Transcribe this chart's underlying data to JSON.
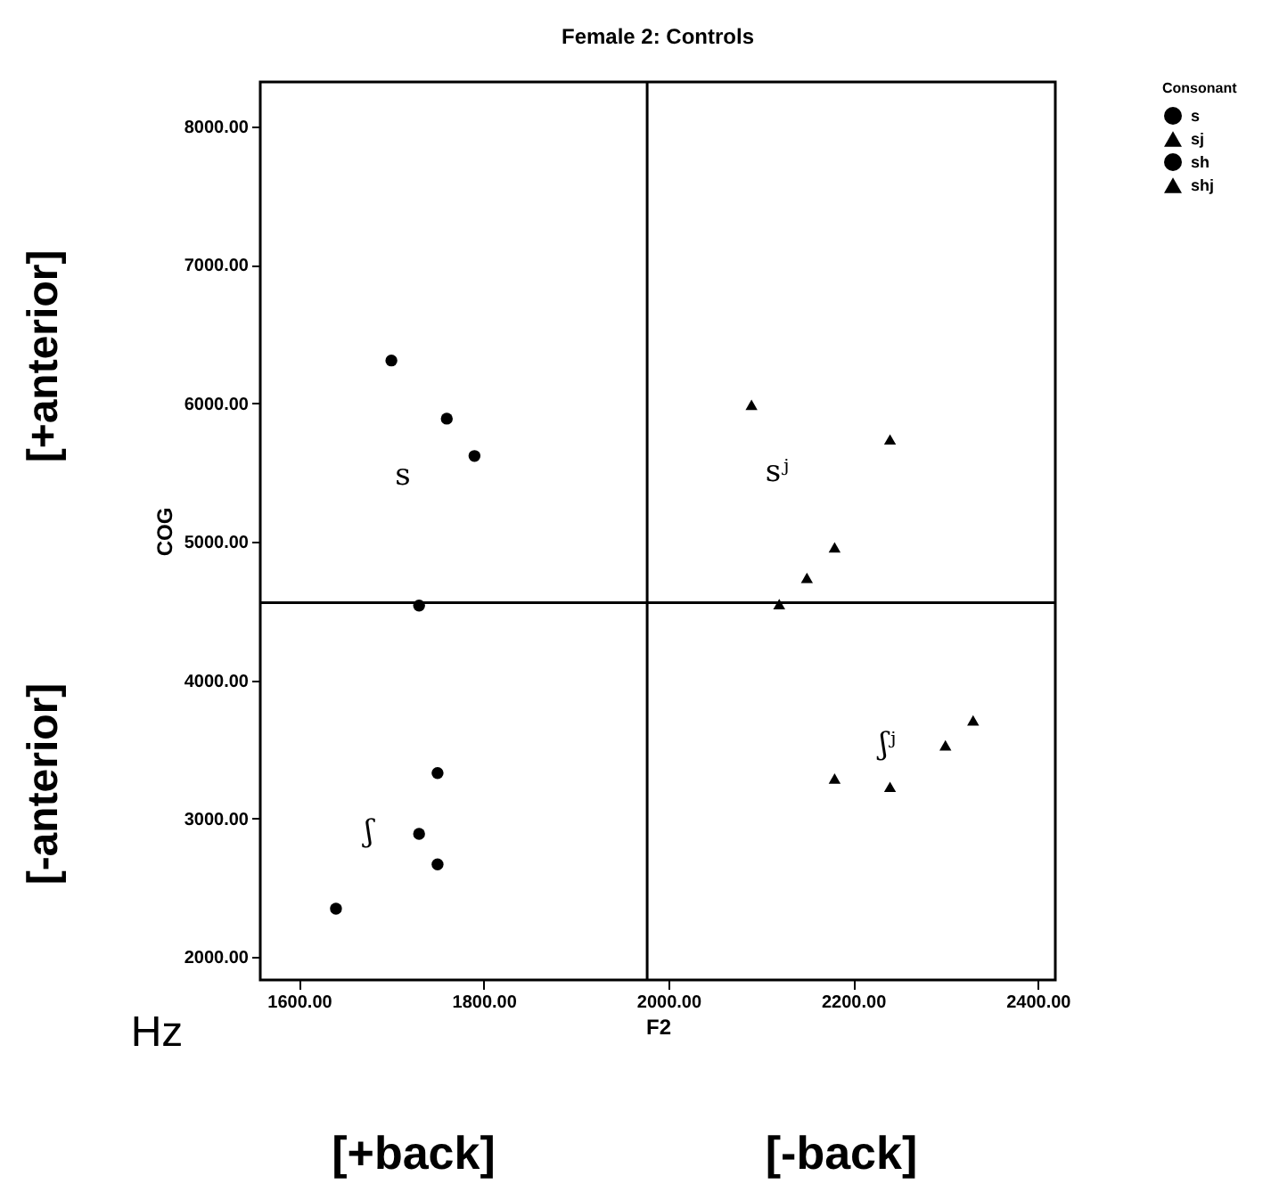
{
  "chart_data": {
    "type": "scatter",
    "title": "Female 2: Controls",
    "xlabel": "F2",
    "ylabel": "COG",
    "legend_title": "Consonant",
    "legend": "top right",
    "grid": false,
    "xlim": [
      1558,
      2419
    ],
    "ylim": [
      1835,
      8322
    ],
    "xticks": [
      {
        "value": 1600,
        "label": "1600.00"
      },
      {
        "value": 1800,
        "label": "1800.00"
      },
      {
        "value": 2000,
        "label": "2000.00"
      },
      {
        "value": 2200,
        "label": "2200.00"
      },
      {
        "value": 2400,
        "label": "2400.00"
      }
    ],
    "yticks": [
      {
        "value": 2000,
        "label": "2000.00"
      },
      {
        "value": 3000,
        "label": "3000.00"
      },
      {
        "value": 4000,
        "label": "4000.00"
      },
      {
        "value": 5000,
        "label": "5000.00"
      },
      {
        "value": 6000,
        "label": "6000.00"
      },
      {
        "value": 7000,
        "label": "7000.00"
      },
      {
        "value": 8000,
        "label": "8000.00"
      }
    ],
    "series": [
      {
        "name": "s",
        "color": "#000000",
        "marker": "circle",
        "x": [
          1700,
          1760,
          1790,
          1730
        ],
        "values": [
          6310,
          5890,
          5620,
          4540
        ]
      },
      {
        "name": "sj",
        "color": "#000000",
        "marker": "triangle",
        "x": [
          2090,
          2240,
          2180,
          2150,
          2120
        ],
        "values": [
          5990,
          5740,
          4960,
          4740,
          4550
        ]
      },
      {
        "name": "sh",
        "color": "#000000",
        "marker": "circle",
        "x": [
          1750,
          1730,
          1750,
          1640
        ],
        "values": [
          3330,
          2890,
          2670,
          2350
        ]
      },
      {
        "name": "shj",
        "color": "#000000",
        "marker": "triangle",
        "x": [
          2330,
          2300,
          2180,
          2240
        ],
        "values": [
          3710,
          3530,
          3290,
          3230
        ]
      }
    ],
    "ref_lines": [
      {
        "axis": "x",
        "value": 1977,
        "color": "#000000"
      },
      {
        "axis": "y",
        "value": 4560,
        "color": "#000000"
      }
    ],
    "annotations": [
      "s",
      "sʲ",
      "ʃ",
      "ʃʲ",
      "[+anterior]",
      "[-anterior]",
      "Hz",
      "[+back]",
      "[-back]"
    ]
  }
}
